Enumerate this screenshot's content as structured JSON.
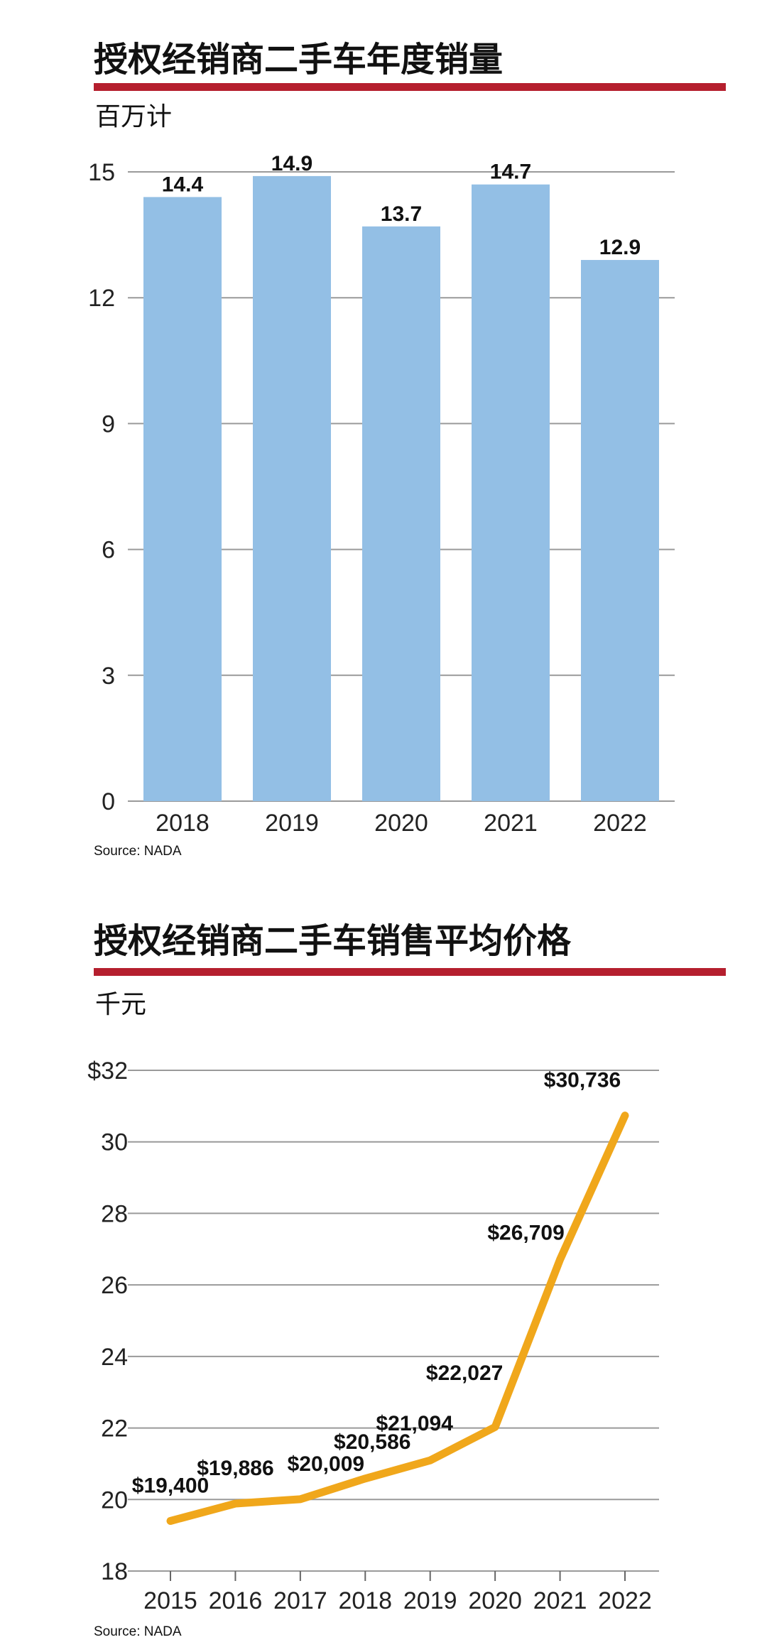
{
  "chart_data": [
    {
      "type": "bar",
      "title": "授权经销商二手车年度销量",
      "subtitle": "百万计",
      "categories": [
        "2018",
        "2019",
        "2020",
        "2021",
        "2022"
      ],
      "values": [
        14.4,
        14.9,
        13.7,
        14.7,
        12.9
      ],
      "value_labels": [
        "14.4",
        "14.9",
        "13.7",
        "14.7",
        "12.9"
      ],
      "yticks": [
        0,
        3,
        6,
        9,
        12,
        15
      ],
      "ytick_labels": [
        "0",
        "3",
        "6",
        "9",
        "12",
        "15"
      ],
      "ylim": [
        0,
        15
      ],
      "grid": true,
      "bar_color": "#93bfe5",
      "source": "Source: NADA"
    },
    {
      "type": "line",
      "title": "授权经销商二手车销售平均价格",
      "subtitle": "千元",
      "x": [
        "2015",
        "2016",
        "2017",
        "2018",
        "2019",
        "2020",
        "2021",
        "2022"
      ],
      "values": [
        19.4,
        19.886,
        20.009,
        20.586,
        21.094,
        22.027,
        26.709,
        30.736
      ],
      "value_labels": [
        "$19,400",
        "$19,886",
        "$20,009",
        "$20,586",
        "$21,094",
        "$22,027",
        "$26,709",
        "$30,736"
      ],
      "yticks": [
        18,
        20,
        22,
        24,
        26,
        28,
        30,
        32
      ],
      "ytick_labels": [
        "18",
        "20",
        "22",
        "24",
        "26",
        "28",
        "30",
        "$32"
      ],
      "ylim": [
        18,
        32
      ],
      "grid": true,
      "line_color": "#f0a71b",
      "source": "Source: NADA"
    }
  ],
  "accent_color": "#b51f2e"
}
